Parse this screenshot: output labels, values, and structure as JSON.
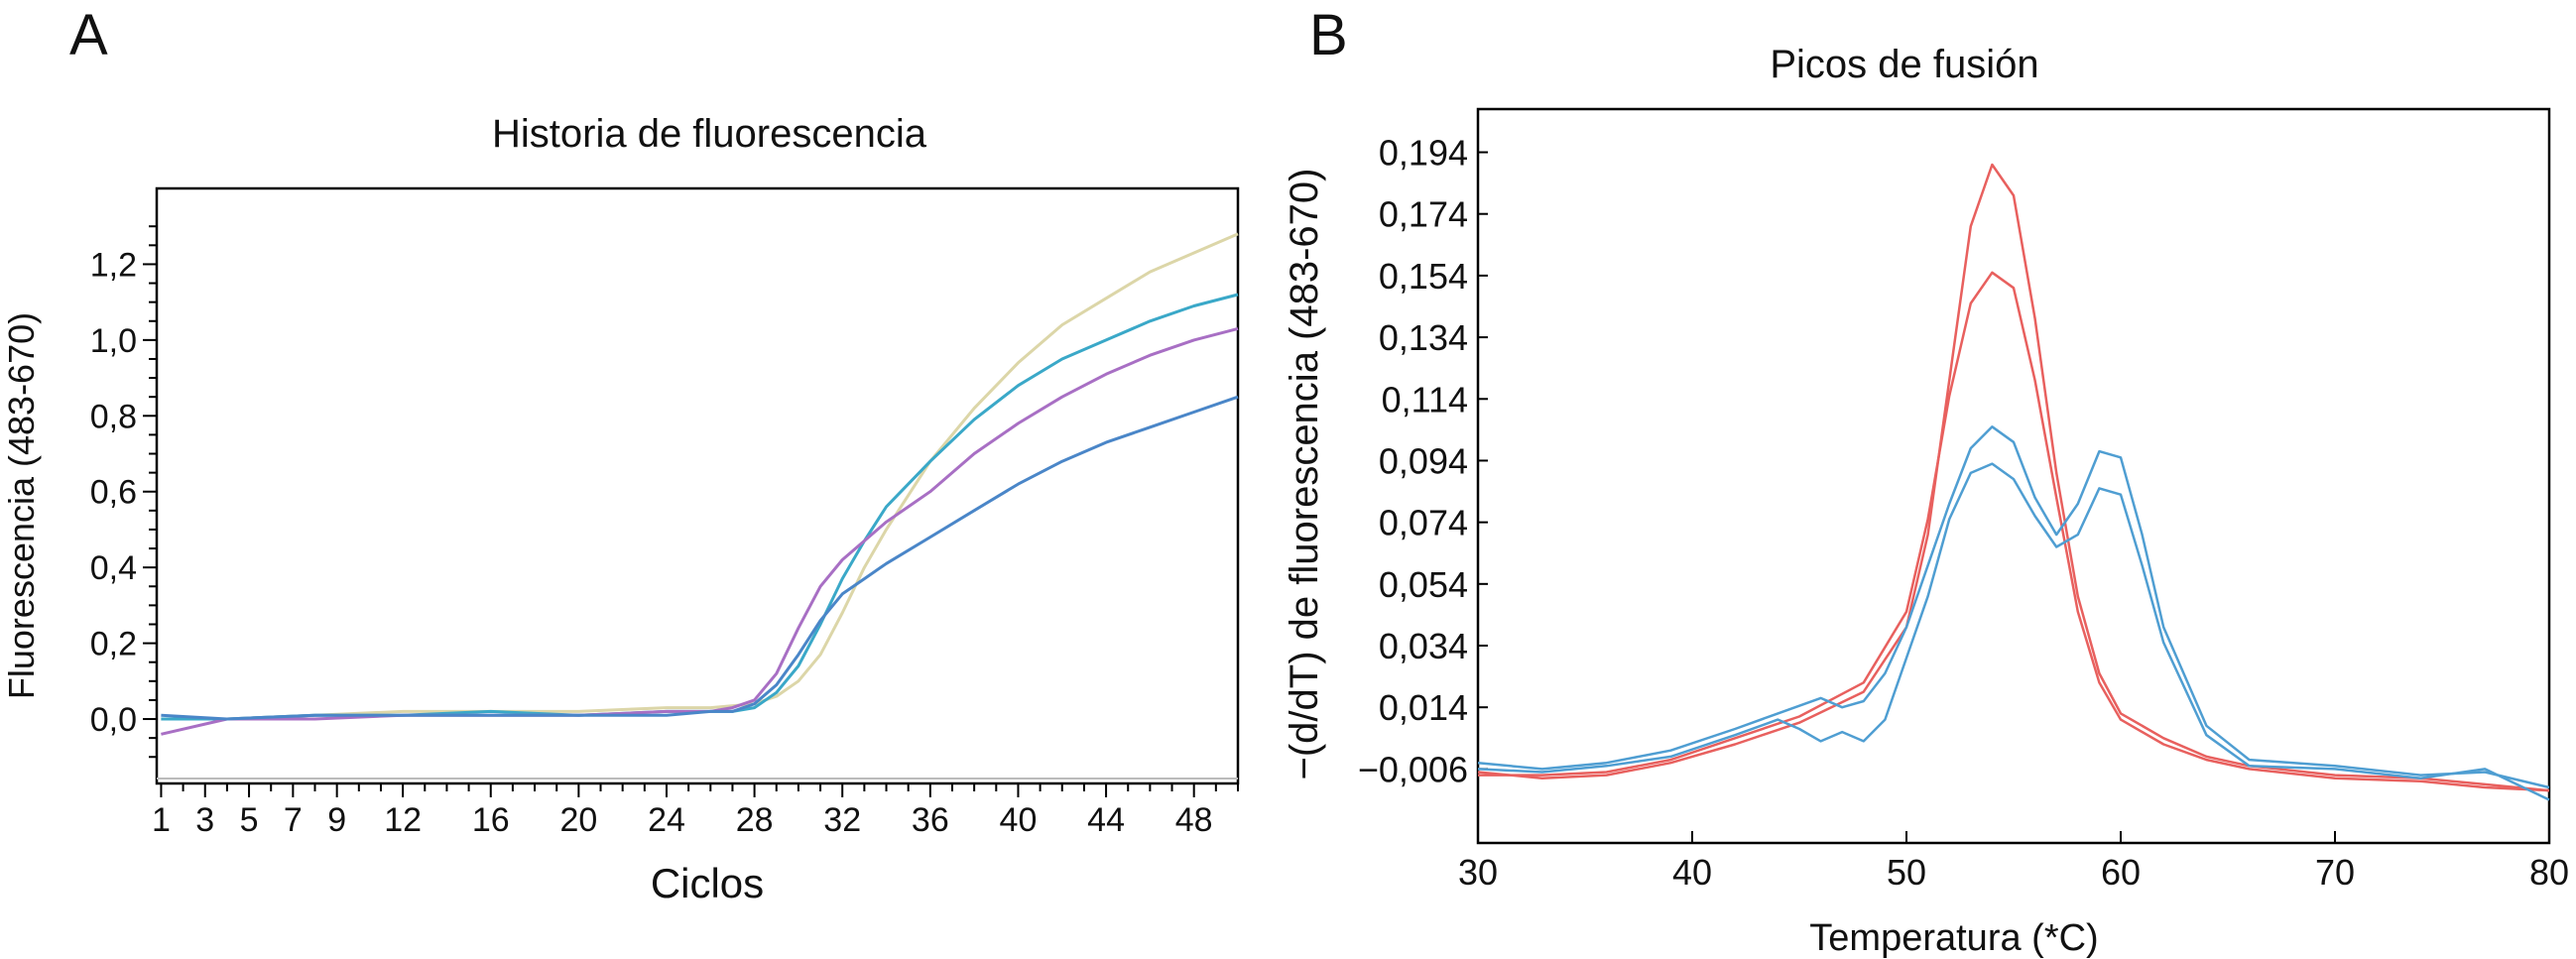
{
  "panels": [
    {
      "letter": "A",
      "title": "Historia de fluorescencia",
      "xlabel": "Ciclos",
      "ylabel": "Fluorescencia (483-670)"
    },
    {
      "letter": "B",
      "title": "Picos de fusión",
      "xlabel": "Temperatura (*C)",
      "ylabel": "−(d/dT) de fluorescencia (483-670)"
    }
  ],
  "chart_data": [
    {
      "type": "line",
      "title": "Historia de fluorescencia",
      "xlabel": "Ciclos",
      "ylabel": "Fluorescencia (483-670)",
      "xlim": [
        0.8,
        50
      ],
      "ylim": [
        -0.17,
        1.4
      ],
      "x_ticks": [
        1,
        3,
        5,
        7,
        9,
        12,
        16,
        20,
        24,
        28,
        32,
        36,
        40,
        44,
        48
      ],
      "y_ticks": [
        "0,0",
        "0,2",
        "0,4",
        "0,6",
        "0,8",
        "1,0",
        "1,2"
      ],
      "y_tick_values": [
        0.0,
        0.2,
        0.4,
        0.6,
        0.8,
        1.0,
        1.2
      ],
      "grid": false,
      "series": [
        {
          "color": "#dcd6a8",
          "x": [
            1,
            4,
            8,
            12,
            16,
            20,
            24,
            26,
            28,
            29,
            30,
            31,
            32,
            33,
            34,
            36,
            38,
            40,
            42,
            44,
            46,
            48,
            50
          ],
          "y": [
            0.0,
            0.0,
            0.01,
            0.02,
            0.02,
            0.02,
            0.03,
            0.03,
            0.04,
            0.06,
            0.1,
            0.17,
            0.28,
            0.4,
            0.5,
            0.68,
            0.82,
            0.94,
            1.04,
            1.11,
            1.18,
            1.23,
            1.28
          ]
        },
        {
          "color": "#3aa8c8",
          "x": [
            1,
            4,
            8,
            12,
            16,
            20,
            24,
            26,
            27,
            28,
            29,
            30,
            31,
            32,
            33,
            34,
            36,
            38,
            40,
            42,
            44,
            46,
            48,
            50
          ],
          "y": [
            0.0,
            0.0,
            0.01,
            0.01,
            0.02,
            0.01,
            0.02,
            0.02,
            0.02,
            0.03,
            0.07,
            0.14,
            0.25,
            0.37,
            0.47,
            0.56,
            0.68,
            0.79,
            0.88,
            0.95,
            1.0,
            1.05,
            1.09,
            1.12
          ]
        },
        {
          "color": "#a86fc4",
          "x": [
            1,
            4,
            8,
            12,
            16,
            20,
            24,
            26,
            27,
            28,
            29,
            30,
            31,
            32,
            33,
            34,
            36,
            38,
            40,
            42,
            44,
            46,
            48,
            50
          ],
          "y": [
            -0.04,
            0.0,
            0.0,
            0.01,
            0.01,
            0.01,
            0.02,
            0.02,
            0.03,
            0.05,
            0.12,
            0.24,
            0.35,
            0.42,
            0.47,
            0.52,
            0.6,
            0.7,
            0.78,
            0.85,
            0.91,
            0.96,
            1.0,
            1.03
          ]
        },
        {
          "color": "#4a86c8",
          "x": [
            1,
            4,
            8,
            12,
            16,
            20,
            24,
            26,
            27,
            28,
            29,
            30,
            31,
            32,
            33,
            34,
            36,
            38,
            40,
            42,
            44,
            46,
            48,
            50
          ],
          "y": [
            0.01,
            0.0,
            0.01,
            0.01,
            0.01,
            0.01,
            0.01,
            0.02,
            0.02,
            0.04,
            0.09,
            0.17,
            0.26,
            0.33,
            0.37,
            0.41,
            0.48,
            0.55,
            0.62,
            0.68,
            0.73,
            0.77,
            0.81,
            0.85
          ]
        }
      ]
    },
    {
      "type": "line",
      "title": "Picos de fusión",
      "xlabel": "Temperatura (*C)",
      "ylabel": "−(d/dT) de fluorescencia (483-670)",
      "xlim": [
        30,
        80
      ],
      "ylim": [
        -0.03,
        0.208
      ],
      "x_ticks": [
        "30",
        "40",
        "50",
        "60",
        "70",
        "80"
      ],
      "x_tick_values": [
        30,
        40,
        50,
        60,
        70,
        80
      ],
      "y_ticks": [
        "0,194",
        "0,174",
        "0,154",
        "0,134",
        "0,114",
        "0,094",
        "0,074",
        "0,054",
        "0,034",
        "0,014",
        "−0,006"
      ],
      "y_tick_values": [
        0.194,
        0.174,
        0.154,
        0.134,
        0.114,
        0.094,
        0.074,
        0.054,
        0.034,
        0.014,
        -0.006
      ],
      "grid": false,
      "series": [
        {
          "color": "#e8605e",
          "x": [
            30,
            33,
            36,
            39,
            42,
            45,
            48,
            50,
            51,
            52,
            53,
            54,
            55,
            56,
            57,
            58,
            59,
            60,
            62,
            64,
            66,
            70,
            74,
            77,
            80
          ],
          "y": [
            -0.007,
            -0.009,
            -0.008,
            -0.004,
            0.002,
            0.009,
            0.019,
            0.04,
            0.07,
            0.12,
            0.17,
            0.19,
            0.18,
            0.14,
            0.09,
            0.05,
            0.025,
            0.012,
            0.004,
            -0.002,
            -0.005,
            -0.008,
            -0.009,
            -0.011,
            -0.013
          ]
        },
        {
          "color": "#e8605e",
          "x": [
            30,
            33,
            36,
            39,
            42,
            45,
            48,
            50,
            51,
            52,
            53,
            54,
            55,
            56,
            57,
            58,
            59,
            60,
            62,
            64,
            66,
            70,
            74,
            77,
            80
          ],
          "y": [
            -0.008,
            -0.008,
            -0.007,
            -0.003,
            0.004,
            0.011,
            0.022,
            0.045,
            0.075,
            0.115,
            0.145,
            0.155,
            0.15,
            0.12,
            0.082,
            0.045,
            0.022,
            0.01,
            0.002,
            -0.003,
            -0.006,
            -0.009,
            -0.01,
            -0.012,
            -0.013
          ]
        },
        {
          "color": "#4f9ed2",
          "x": [
            30,
            33,
            36,
            39,
            42,
            44,
            46,
            47,
            48,
            49,
            50,
            51,
            52,
            53,
            54,
            55,
            56,
            57,
            58,
            59,
            60,
            61,
            62,
            64,
            66,
            70,
            74,
            77,
            80
          ],
          "y": [
            -0.004,
            -0.006,
            -0.004,
            0.0,
            0.007,
            0.012,
            0.017,
            0.014,
            0.016,
            0.025,
            0.04,
            0.06,
            0.08,
            0.098,
            0.105,
            0.1,
            0.082,
            0.07,
            0.08,
            0.097,
            0.095,
            0.07,
            0.04,
            0.008,
            -0.003,
            -0.005,
            -0.008,
            -0.007,
            -0.012
          ]
        },
        {
          "color": "#4f9ed2",
          "x": [
            30,
            33,
            36,
            39,
            42,
            44,
            45,
            46,
            47,
            48,
            49,
            50,
            51,
            52,
            53,
            54,
            55,
            56,
            57,
            58,
            59,
            60,
            61,
            62,
            64,
            66,
            70,
            74,
            77,
            80
          ],
          "y": [
            -0.006,
            -0.007,
            -0.005,
            -0.002,
            0.005,
            0.01,
            0.007,
            0.003,
            0.006,
            0.003,
            0.01,
            0.03,
            0.05,
            0.075,
            0.09,
            0.093,
            0.088,
            0.076,
            0.066,
            0.07,
            0.085,
            0.083,
            0.06,
            0.035,
            0.005,
            -0.005,
            -0.006,
            -0.009,
            -0.006,
            -0.016
          ]
        }
      ]
    }
  ]
}
